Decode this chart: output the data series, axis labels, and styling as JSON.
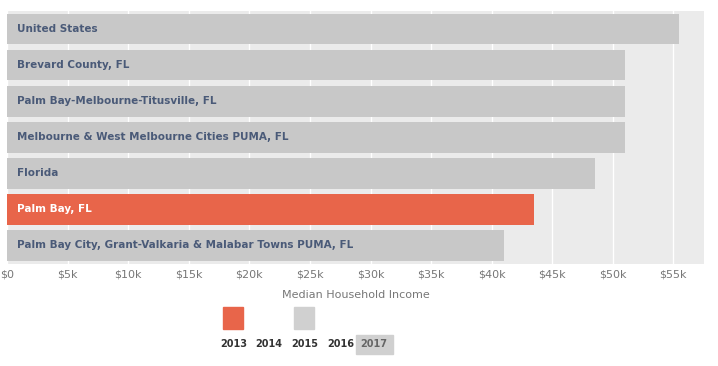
{
  "categories": [
    "United States",
    "Brevard County, FL",
    "Palm Bay-Melbourne-Titusville, FL",
    "Melbourne & West Melbourne Cities PUMA, FL",
    "Florida",
    "Palm Bay, FL",
    "Palm Bay City, Grant-Valkaria & Malabar Towns PUMA, FL"
  ],
  "values": [
    55500,
    51000,
    51000,
    51000,
    48500,
    43500,
    41000
  ],
  "bar_colors": [
    "#c8c8c8",
    "#c8c8c8",
    "#c8c8c8",
    "#c8c8c8",
    "#c8c8c8",
    "#e8654a",
    "#c8c8c8"
  ],
  "label_text_colors": [
    "#4a5a78",
    "#4a5a78",
    "#4a5a78",
    "#4a5a78",
    "#4a5a78",
    "#ffffff",
    "#4a5a78"
  ],
  "xlim": [
    0,
    57500
  ],
  "xlabel": "Median Household Income",
  "xticks": [
    0,
    5000,
    10000,
    15000,
    20000,
    25000,
    30000,
    35000,
    40000,
    45000,
    50000,
    55000
  ],
  "xtick_labels": [
    "$0",
    "$5k",
    "$10k",
    "$15k",
    "$20k",
    "$25k",
    "$30k",
    "$35k",
    "$40k",
    "$45k",
    "$50k",
    "$55k"
  ],
  "bar_height": 0.85,
  "background_color": "#ffffff",
  "grid_color": "#ffffff",
  "bar_area_bg": "#ebebeb",
  "legend_years": [
    "2013",
    "2014",
    "2015",
    "2016",
    "2017"
  ],
  "legend_color_orange": "#e8654a",
  "legend_color_gray": "#d0d0d0",
  "tick_color": "#777777",
  "xlabel_color": "#777777",
  "label_fontsize": 7.5,
  "xlabel_fontsize": 8,
  "xtick_fontsize": 8
}
